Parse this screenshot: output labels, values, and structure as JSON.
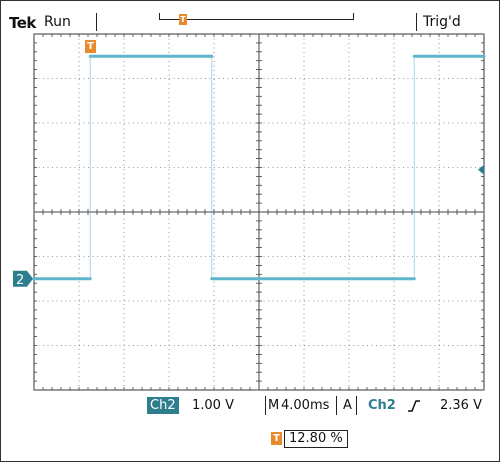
{
  "header": {
    "brand": "Tek",
    "acq_state": "Run",
    "trigger_status": "Trig'd",
    "trigger_marker_icon": "trigger-position-icon"
  },
  "chart_data": {
    "type": "line",
    "title": "",
    "xlabel": "",
    "ylabel": "",
    "xlim": [
      0,
      10
    ],
    "ylim": [
      -4,
      4
    ],
    "grid": true,
    "series": [
      {
        "channel": "2",
        "color": "#5fb6cc",
        "x": [
          0,
          1.25,
          1.25,
          3.95,
          3.95,
          8.45,
          8.45,
          10
        ],
        "y": [
          -1.5,
          -1.5,
          3.5,
          3.5,
          -1.5,
          -1.5,
          3.5,
          3.5
        ]
      }
    ],
    "ground_marker": {
      "label": "2",
      "y": -1.5
    },
    "trigger_level_marker_y": 0.95
  },
  "readouts": {
    "ch_label": "Ch2",
    "ch_scale": "1.00 V",
    "timebase_prefix": "M",
    "timebase": "4.00ms",
    "trigger_mode": "A",
    "trigger_source": "Ch2",
    "trigger_slope_icon": "rising-edge-icon",
    "trigger_level": "2.36 V",
    "trigger_position": "12.80 %"
  },
  "colors": {
    "trace": "#5fb6cc",
    "trigger_marker": "#e88a2d",
    "channel_badge": "#2d7f8e"
  }
}
